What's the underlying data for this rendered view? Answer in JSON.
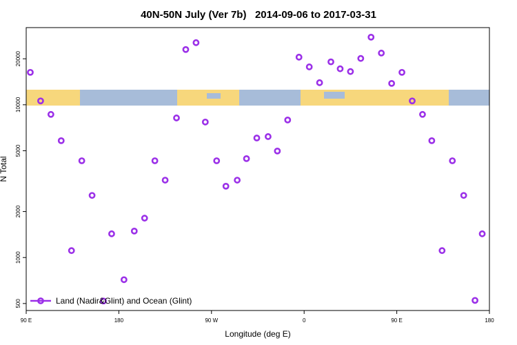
{
  "chart_data": {
    "type": "scatter",
    "title": "40N-50N July (Ver 7b)   2014-09-06 to 2017-03-31",
    "x_label": "Longitude (deg E)",
    "y_label": "N Total",
    "log_y": true,
    "legend": "bottom left",
    "xlim": [
      90,
      540
    ],
    "ylim": [
      450,
      32000
    ],
    "xticks": [
      {
        "value": 90,
        "label": "90 E"
      },
      180,
      {
        "value": 270,
        "label": "90 W"
      },
      {
        "value": 360,
        "label": "0"
      },
      {
        "value": 450,
        "label": "90 E"
      },
      {
        "value": 540,
        "label": "180"
      }
    ],
    "yticks": [
      500,
      1000,
      2000,
      5000,
      10000,
      20000
    ],
    "series": [
      {
        "name": "Land (Nadir&Glint) and Ocean (Glint)",
        "color": "#9b30e8",
        "x": [
          94,
          104,
          114,
          124,
          134,
          144,
          154,
          165,
          173,
          185,
          195,
          205,
          215,
          225,
          236,
          245,
          255,
          264,
          275,
          284,
          295,
          304,
          314,
          325,
          334,
          344,
          355,
          365,
          375,
          386,
          395,
          405,
          415,
          425,
          435,
          445,
          455,
          465,
          475,
          484,
          494,
          504,
          515,
          526,
          533
        ],
        "values": [
          16300,
          10600,
          8650,
          5820,
          1110,
          4300,
          2550,
          519,
          1430,
          716,
          1490,
          1810,
          4300,
          3210,
          8200,
          23000,
          25500,
          7710,
          4300,
          2930,
          3210,
          4440,
          6060,
          6190,
          4980,
          7950,
          20500,
          17700,
          13950,
          19100,
          17200,
          16500,
          20100,
          27700,
          21800,
          13800,
          16300,
          10600,
          8650,
          5820,
          1110,
          4300,
          2550,
          524,
          1430
        ]
      }
    ]
  }
}
